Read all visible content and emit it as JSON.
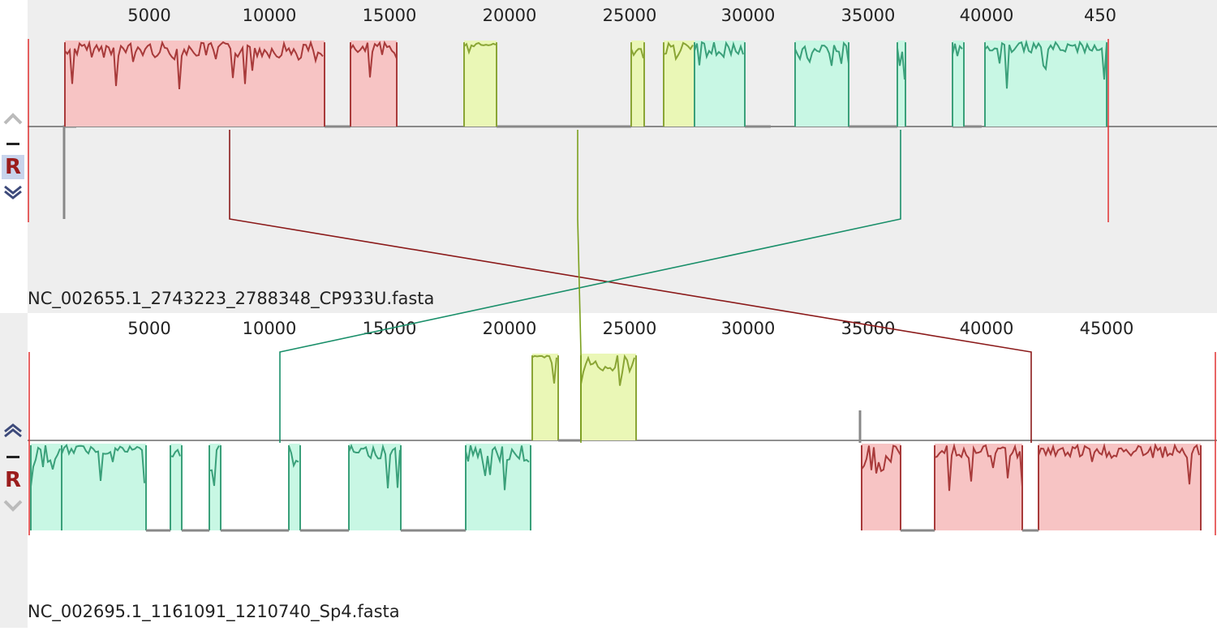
{
  "sequences": [
    {
      "id": "top",
      "label": "NC_002655.1_2743223_2788348_CP933U.fasta",
      "ruler_ticks": [
        "5000",
        "10000",
        "15000",
        "20000",
        "25000",
        "30000",
        "35000",
        "40000",
        "450"
      ],
      "controls": {
        "up": "chevron-up-icon",
        "minus": "minus-icon",
        "reverse": "R",
        "down": "chevron-down-icon"
      }
    },
    {
      "id": "bottom",
      "label": "NC_002695.1_1161091_1210740_Sp4.fasta",
      "ruler_ticks": [
        "5000",
        "10000",
        "15000",
        "20000",
        "25000",
        "30000",
        "35000",
        "40000",
        "45000"
      ],
      "controls": {
        "up": "chevron-up-icon",
        "minus": "minus-icon",
        "reverse": "R",
        "down": "chevron-down-icon"
      }
    }
  ],
  "colors": {
    "block_red": "#f7c4c4",
    "curve_red": "#a83a3a",
    "block_green": "#c8f7e4",
    "curve_green": "#3aa07a",
    "block_yellow": "#eaf7b6",
    "curve_yellow": "#8aa535",
    "connector_red": "#8b1a1a",
    "connector_green": "#1a8f6a",
    "connector_olive": "#7ba01e",
    "baseline": "#777777"
  }
}
